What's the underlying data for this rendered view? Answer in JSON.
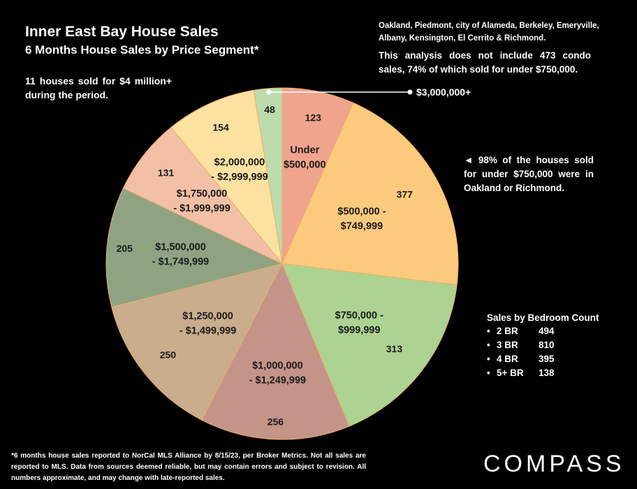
{
  "title": "Inner East Bay House Sales",
  "subtitle": "6 Months House Sales by Price Segment*",
  "note_left": "11 houses sold for $4 million+ during the period.",
  "regions_note": "Oakland, Piedmont, city of Alameda, Berkeley, Emeryville, Albany, Kensington, El Cerrito & Richmond.",
  "condo_note": "This analysis does not include 473 condo sales, 74% of which sold for under $750,000.",
  "oakland_note": "◄ 98% of the houses sold for under $750,000 were in Oakland or Richmond.",
  "callout_label": "$3,000,000+",
  "bedroom": {
    "heading": "Sales by Bedroom Count",
    "rows": [
      {
        "bullet": "•",
        "label": "2 BR",
        "value": "494"
      },
      {
        "bullet": "•",
        "label": "3 BR",
        "value": "810"
      },
      {
        "bullet": "•",
        "label": "4 BR",
        "value": "395"
      },
      {
        "bullet": "•",
        "label": "5+ BR",
        "value": "138"
      }
    ]
  },
  "footnote": "*6 months house sales reported to NorCal MLS Alliance by 8/15/23, per Broker Metrics. Not all sales are reported to MLS. Data from sources deemed reliable, but may contain errors and subject to revision. All numbers approximate, and may change with late-reported sales.",
  "logo": "COMPASS",
  "chart_data": {
    "type": "pie",
    "title": "6 Months House Sales by Price Segment*",
    "slices": [
      {
        "category": "Under $500,000",
        "lines": [
          "Under",
          "$500,000"
        ],
        "value": 123,
        "color": "#f0a48e"
      },
      {
        "category": "$500,000 - $749,999",
        "lines": [
          "$500,000 -",
          "$749,999"
        ],
        "value": 377,
        "color": "#fbca7c"
      },
      {
        "category": "$750,000 - $999,999",
        "lines": [
          "$750,000 -",
          "$999,999"
        ],
        "value": 313,
        "color": "#acd391"
      },
      {
        "category": "$1,000,000 - $1,249,999",
        "lines": [
          "$1,000,000",
          "- $1,249,999"
        ],
        "value": 256,
        "color": "#c49488"
      },
      {
        "category": "$1,250,000 - $1,499,999",
        "lines": [
          "$1,250,000",
          "- $1,499,999"
        ],
        "value": 250,
        "color": "#c9ad8d"
      },
      {
        "category": "$1,500,000 - $1,749,999",
        "lines": [
          "$1,500,000",
          "- $1,749,999"
        ],
        "value": 205,
        "color": "#8fa383"
      },
      {
        "category": "$1,750,000 - $1,999,999",
        "lines": [
          "$1,750,000",
          "- $1,999,999"
        ],
        "value": 131,
        "color": "#f3bfa7"
      },
      {
        "category": "$2,000,000 - $2,999,999",
        "lines": [
          "$2,000,000",
          "- $2,999,999"
        ],
        "value": 154,
        "color": "#fce1a1"
      },
      {
        "category": "$3,000,000+",
        "lines": [],
        "value": 48,
        "color": "#bddcae"
      }
    ]
  }
}
